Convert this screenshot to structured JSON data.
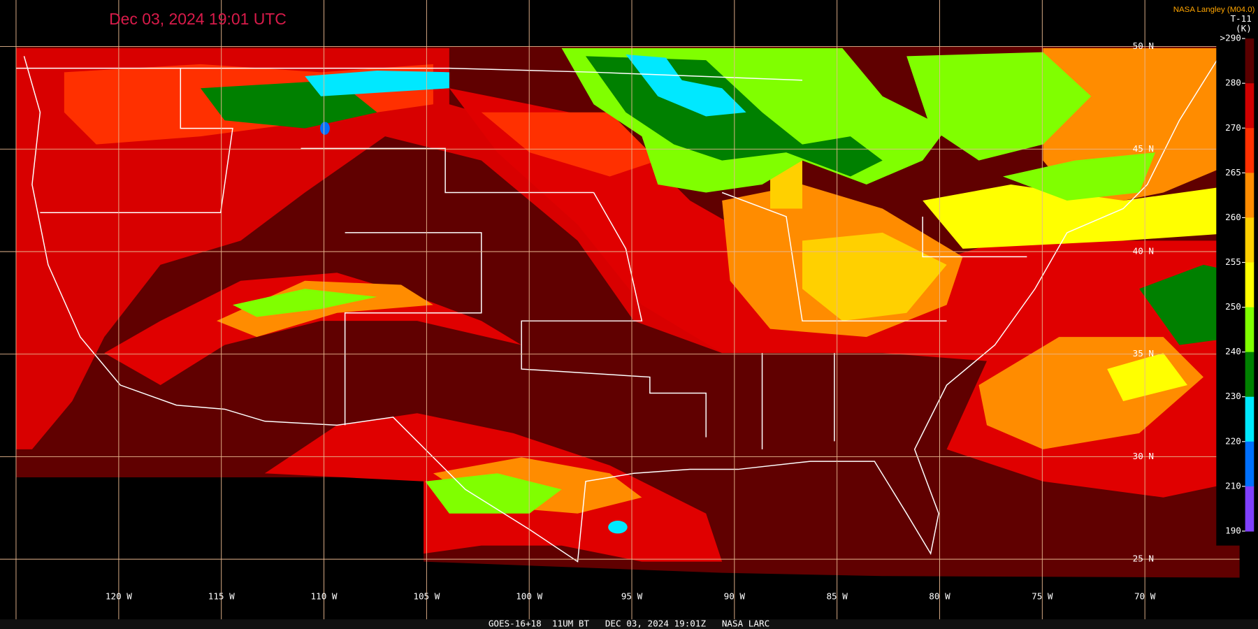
{
  "title": "Dec 03, 2024 19:01 UTC",
  "credit": "NASA Langley (M04.0)",
  "colorbar": {
    "title": "T-11",
    "unit": "(K)",
    "ticks": [
      {
        "value": 290,
        "label": ">290"
      },
      280,
      270,
      265,
      260,
      255,
      250,
      240,
      230,
      220,
      210,
      190
    ],
    "colors": [
      "#5a0000",
      "#d00000",
      "#ff3000",
      "#ff8c00",
      "#ffd000",
      "#ffff00",
      "#80ff00",
      "#008000",
      "#00e8ff",
      "#0070ff",
      "#8040ff"
    ]
  },
  "longitude_labels": [
    "120 W",
    "115 W",
    "110 W",
    "105 W",
    "100 W",
    "95 W",
    "90 W",
    "85 W",
    "80 W",
    "75 W",
    "70 W"
  ],
  "latitude_labels": [
    "50 N",
    "45 N",
    "40 N",
    "35 N",
    "30 N",
    "25 N"
  ],
  "footer": "GOES-16+18  11UM BT   DEC 03, 2024 19:01Z   NASA LARC"
}
